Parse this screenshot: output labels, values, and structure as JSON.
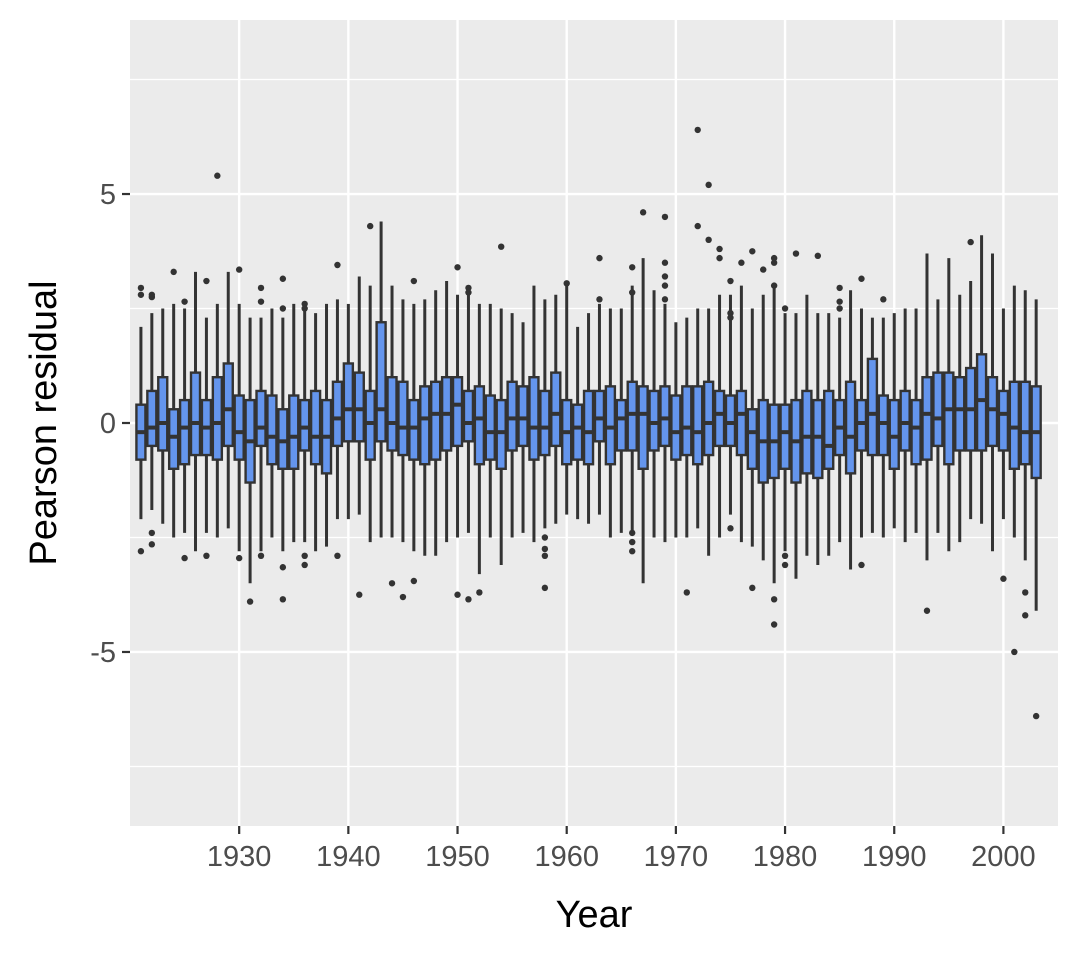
{
  "chart_data": {
    "type": "box",
    "title": "",
    "xlabel": "Year",
    "ylabel": "Pearson residual",
    "xlim": [
      1920,
      2005
    ],
    "ylim": [
      -8.8,
      8.8
    ],
    "xticks": [
      1930,
      1940,
      1950,
      1960,
      1970,
      1980,
      1990,
      2000
    ],
    "yticks": [
      -5,
      0,
      5
    ],
    "grid": true,
    "colors": {
      "panel": "#ebebeb",
      "grid": "#ffffff",
      "box_fill": "#6495ed",
      "box_line": "#333333"
    },
    "boxes": [
      {
        "year": 1921,
        "lw": -2.1,
        "q1": -0.8,
        "med": -0.2,
        "q3": 0.4,
        "uw": 2.1,
        "out": [
          2.8,
          2.95,
          -2.8
        ]
      },
      {
        "year": 1922,
        "lw": -1.9,
        "q1": -0.5,
        "med": -0.1,
        "q3": 0.7,
        "uw": 2.4,
        "out": [
          2.75,
          2.8,
          -2.4,
          -2.65
        ]
      },
      {
        "year": 1923,
        "lw": -2.2,
        "q1": -0.6,
        "med": 0.0,
        "q3": 1.0,
        "uw": 2.5,
        "out": []
      },
      {
        "year": 1924,
        "lw": -2.5,
        "q1": -1.0,
        "med": -0.3,
        "q3": 0.3,
        "uw": 2.6,
        "out": [
          3.3
        ]
      },
      {
        "year": 1925,
        "lw": -2.4,
        "q1": -0.9,
        "med": -0.1,
        "q3": 0.5,
        "uw": 2.5,
        "out": [
          2.65,
          -2.95
        ]
      },
      {
        "year": 1926,
        "lw": -2.8,
        "q1": -0.7,
        "med": 0.0,
        "q3": 1.1,
        "uw": 3.3,
        "out": []
      },
      {
        "year": 1927,
        "lw": -2.4,
        "q1": -0.7,
        "med": -0.1,
        "q3": 0.5,
        "uw": 2.3,
        "out": [
          3.1,
          -2.9
        ]
      },
      {
        "year": 1928,
        "lw": -2.5,
        "q1": -0.8,
        "med": 0.0,
        "q3": 1.0,
        "uw": 2.6,
        "out": [
          5.4
        ]
      },
      {
        "year": 1929,
        "lw": -2.3,
        "q1": -0.5,
        "med": 0.3,
        "q3": 1.3,
        "uw": 3.3,
        "out": []
      },
      {
        "year": 1930,
        "lw": -2.8,
        "q1": -0.8,
        "med": -0.2,
        "q3": 0.6,
        "uw": 2.6,
        "out": [
          3.35,
          -2.95
        ]
      },
      {
        "year": 1931,
        "lw": -3.5,
        "q1": -1.3,
        "med": -0.4,
        "q3": 0.5,
        "uw": 2.3,
        "out": [
          -3.9
        ]
      },
      {
        "year": 1932,
        "lw": -2.8,
        "q1": -0.5,
        "med": -0.1,
        "q3": 0.7,
        "uw": 2.3,
        "out": [
          2.65,
          2.95,
          -2.9
        ]
      },
      {
        "year": 1933,
        "lw": -2.5,
        "q1": -0.9,
        "med": -0.3,
        "q3": 0.6,
        "uw": 2.5,
        "out": []
      },
      {
        "year": 1934,
        "lw": -2.8,
        "q1": -1.0,
        "med": -0.4,
        "q3": 0.3,
        "uw": 2.3,
        "out": [
          3.15,
          2.5,
          -3.15,
          -3.85
        ]
      },
      {
        "year": 1935,
        "lw": -2.6,
        "q1": -1.0,
        "med": -0.3,
        "q3": 0.6,
        "uw": 2.6,
        "out": []
      },
      {
        "year": 1936,
        "lw": -2.6,
        "q1": -0.6,
        "med": -0.1,
        "q3": 0.5,
        "uw": 2.5,
        "out": [
          2.6,
          2.5,
          -2.9,
          -3.1
        ]
      },
      {
        "year": 1937,
        "lw": -2.8,
        "q1": -0.9,
        "med": -0.3,
        "q3": 0.7,
        "uw": 2.4,
        "out": []
      },
      {
        "year": 1938,
        "lw": -2.7,
        "q1": -1.1,
        "med": -0.3,
        "q3": 0.5,
        "uw": 2.6,
        "out": []
      },
      {
        "year": 1939,
        "lw": -2.1,
        "q1": -0.5,
        "med": 0.1,
        "q3": 0.9,
        "uw": 2.7,
        "out": [
          3.45,
          -2.9
        ]
      },
      {
        "year": 1940,
        "lw": -2.1,
        "q1": -0.4,
        "med": 0.3,
        "q3": 1.3,
        "uw": 2.6,
        "out": []
      },
      {
        "year": 1941,
        "lw": -2.0,
        "q1": -0.4,
        "med": 0.3,
        "q3": 1.1,
        "uw": 3.2,
        "out": [
          -3.75
        ]
      },
      {
        "year": 1942,
        "lw": -2.6,
        "q1": -0.8,
        "med": 0.0,
        "q3": 0.7,
        "uw": 3.0,
        "out": [
          4.3
        ]
      },
      {
        "year": 1943,
        "lw": -2.5,
        "q1": -0.4,
        "med": 0.3,
        "q3": 2.2,
        "uw": 4.4,
        "out": []
      },
      {
        "year": 1944,
        "lw": -2.5,
        "q1": -0.6,
        "med": 0.0,
        "q3": 1.0,
        "uw": 3.0,
        "out": [
          -3.5
        ]
      },
      {
        "year": 1945,
        "lw": -2.6,
        "q1": -0.7,
        "med": -0.1,
        "q3": 0.9,
        "uw": 2.7,
        "out": [
          -3.8
        ]
      },
      {
        "year": 1946,
        "lw": -2.8,
        "q1": -0.8,
        "med": -0.1,
        "q3": 0.5,
        "uw": 2.6,
        "out": [
          3.1,
          -3.45
        ]
      },
      {
        "year": 1947,
        "lw": -2.9,
        "q1": -0.9,
        "med": 0.1,
        "q3": 0.8,
        "uw": 2.7,
        "out": []
      },
      {
        "year": 1948,
        "lw": -2.9,
        "q1": -0.8,
        "med": 0.2,
        "q3": 0.9,
        "uw": 2.9,
        "out": []
      },
      {
        "year": 1949,
        "lw": -2.6,
        "q1": -0.6,
        "med": 0.2,
        "q3": 1.0,
        "uw": 3.1,
        "out": []
      },
      {
        "year": 1950,
        "lw": -2.5,
        "q1": -0.5,
        "med": 0.4,
        "q3": 1.0,
        "uw": 2.8,
        "out": [
          3.4,
          -3.75
        ]
      },
      {
        "year": 1951,
        "lw": -2.4,
        "q1": -0.4,
        "med": 0.0,
        "q3": 0.7,
        "uw": 2.8,
        "out": [
          2.85,
          2.95,
          -3.85
        ]
      },
      {
        "year": 1952,
        "lw": -3.3,
        "q1": -0.9,
        "med": 0.1,
        "q3": 0.8,
        "uw": 2.6,
        "out": [
          -3.7
        ]
      },
      {
        "year": 1953,
        "lw": -2.5,
        "q1": -0.8,
        "med": -0.2,
        "q3": 0.6,
        "uw": 2.6,
        "out": []
      },
      {
        "year": 1954,
        "lw": -3.1,
        "q1": -1.0,
        "med": -0.2,
        "q3": 0.5,
        "uw": 2.5,
        "out": [
          3.85
        ]
      },
      {
        "year": 1955,
        "lw": -2.5,
        "q1": -0.6,
        "med": 0.1,
        "q3": 0.9,
        "uw": 2.4,
        "out": []
      },
      {
        "year": 1956,
        "lw": -2.4,
        "q1": -0.5,
        "med": 0.1,
        "q3": 0.8,
        "uw": 2.2,
        "out": []
      },
      {
        "year": 1957,
        "lw": -2.6,
        "q1": -0.8,
        "med": -0.1,
        "q3": 1.0,
        "uw": 3.0,
        "out": []
      },
      {
        "year": 1958,
        "lw": -2.3,
        "q1": -0.7,
        "med": -0.1,
        "q3": 0.7,
        "uw": 2.7,
        "out": [
          -2.5,
          -2.75,
          -2.9,
          -3.6
        ]
      },
      {
        "year": 1959,
        "lw": -2.2,
        "q1": -0.5,
        "med": 0.2,
        "q3": 1.1,
        "uw": 2.8,
        "out": []
      },
      {
        "year": 1960,
        "lw": -2.0,
        "q1": -0.9,
        "med": -0.2,
        "q3": 0.5,
        "uw": 3.0,
        "out": [
          3.05
        ]
      },
      {
        "year": 1961,
        "lw": -2.1,
        "q1": -0.8,
        "med": -0.1,
        "q3": 0.4,
        "uw": 2.1,
        "out": []
      },
      {
        "year": 1962,
        "lw": -2.2,
        "q1": -0.9,
        "med": -0.2,
        "q3": 0.7,
        "uw": 2.4,
        "out": []
      },
      {
        "year": 1963,
        "lw": -2.0,
        "q1": -0.4,
        "med": 0.1,
        "q3": 0.7,
        "uw": 2.6,
        "out": [
          3.6,
          2.7
        ]
      },
      {
        "year": 1964,
        "lw": -2.5,
        "q1": -0.9,
        "med": -0.1,
        "q3": 0.8,
        "uw": 2.5,
        "out": []
      },
      {
        "year": 1965,
        "lw": -2.4,
        "q1": -0.6,
        "med": 0.1,
        "q3": 0.5,
        "uw": 2.5,
        "out": []
      },
      {
        "year": 1966,
        "lw": -2.4,
        "q1": -0.6,
        "med": 0.2,
        "q3": 0.9,
        "uw": 3.0,
        "out": [
          -2.4,
          -2.6,
          -2.8,
          3.4,
          2.85
        ]
      },
      {
        "year": 1967,
        "lw": -3.5,
        "q1": -1.0,
        "med": 0.2,
        "q3": 0.8,
        "uw": 3.6,
        "out": [
          4.6
        ]
      },
      {
        "year": 1968,
        "lw": -2.5,
        "q1": -0.6,
        "med": 0.0,
        "q3": 0.7,
        "uw": 2.9,
        "out": []
      },
      {
        "year": 1969,
        "lw": -2.6,
        "q1": -0.5,
        "med": 0.1,
        "q3": 0.8,
        "uw": 2.6,
        "out": [
          4.5,
          3.5,
          3.2,
          3.0,
          2.7
        ]
      },
      {
        "year": 1970,
        "lw": -2.5,
        "q1": -0.8,
        "med": -0.2,
        "q3": 0.6,
        "uw": 2.2,
        "out": []
      },
      {
        "year": 1971,
        "lw": -2.5,
        "q1": -0.7,
        "med": -0.1,
        "q3": 0.8,
        "uw": 2.3,
        "out": [
          -3.7
        ]
      },
      {
        "year": 1972,
        "lw": -2.3,
        "q1": -0.9,
        "med": -0.2,
        "q3": 0.8,
        "uw": 2.5,
        "out": [
          6.4,
          4.3
        ]
      },
      {
        "year": 1973,
        "lw": -2.9,
        "q1": -0.7,
        "med": 0.0,
        "q3": 0.9,
        "uw": 2.5,
        "out": [
          5.2,
          4.0
        ]
      },
      {
        "year": 1974,
        "lw": -2.5,
        "q1": -0.5,
        "med": 0.2,
        "q3": 0.7,
        "uw": 2.8,
        "out": [
          3.8,
          3.6
        ]
      },
      {
        "year": 1975,
        "lw": -2.0,
        "q1": -0.5,
        "med": 0.0,
        "q3": 0.6,
        "uw": 2.8,
        "out": [
          3.1,
          2.4,
          2.3,
          -2.3
        ]
      },
      {
        "year": 1976,
        "lw": -2.6,
        "q1": -0.7,
        "med": 0.2,
        "q3": 0.7,
        "uw": 3.0,
        "out": [
          3.5
        ]
      },
      {
        "year": 1977,
        "lw": -2.7,
        "q1": -1.0,
        "med": -0.2,
        "q3": 0.3,
        "uw": 2.5,
        "out": [
          3.75,
          -3.6
        ]
      },
      {
        "year": 1978,
        "lw": -3.0,
        "q1": -1.3,
        "med": -0.4,
        "q3": 0.5,
        "uw": 2.8,
        "out": [
          3.35
        ]
      },
      {
        "year": 1979,
        "lw": -3.5,
        "q1": -1.2,
        "med": -0.4,
        "q3": 0.4,
        "uw": 3.0,
        "out": [
          3.6,
          3.5,
          3.0,
          -3.85,
          -4.4
        ]
      },
      {
        "year": 1980,
        "lw": -2.8,
        "q1": -1.0,
        "med": -0.2,
        "q3": 0.4,
        "uw": 2.4,
        "out": [
          2.5,
          -2.9,
          -3.1
        ]
      },
      {
        "year": 1981,
        "lw": -3.4,
        "q1": -1.3,
        "med": -0.4,
        "q3": 0.5,
        "uw": 2.4,
        "out": [
          3.7
        ]
      },
      {
        "year": 1982,
        "lw": -2.9,
        "q1": -1.1,
        "med": -0.3,
        "q3": 0.7,
        "uw": 2.8,
        "out": []
      },
      {
        "year": 1983,
        "lw": -3.1,
        "q1": -1.2,
        "med": -0.3,
        "q3": 0.5,
        "uw": 2.4,
        "out": [
          3.65
        ]
      },
      {
        "year": 1984,
        "lw": -2.9,
        "q1": -1.0,
        "med": -0.5,
        "q3": 0.7,
        "uw": 2.4,
        "out": []
      },
      {
        "year": 1985,
        "lw": -2.6,
        "q1": -0.7,
        "med": -0.1,
        "q3": 0.5,
        "uw": 2.3,
        "out": [
          2.95,
          2.65,
          2.5
        ]
      },
      {
        "year": 1986,
        "lw": -3.2,
        "q1": -1.1,
        "med": -0.3,
        "q3": 0.9,
        "uw": 2.9,
        "out": []
      },
      {
        "year": 1987,
        "lw": -2.5,
        "q1": -0.6,
        "med": 0.0,
        "q3": 0.5,
        "uw": 2.5,
        "out": [
          3.15,
          -3.1
        ]
      },
      {
        "year": 1988,
        "lw": -2.4,
        "q1": -0.7,
        "med": 0.2,
        "q3": 1.4,
        "uw": 2.3,
        "out": []
      },
      {
        "year": 1989,
        "lw": -2.5,
        "q1": -0.7,
        "med": 0.0,
        "q3": 0.6,
        "uw": 2.3,
        "out": [
          2.7
        ]
      },
      {
        "year": 1990,
        "lw": -2.3,
        "q1": -1.0,
        "med": -0.3,
        "q3": 0.5,
        "uw": 2.4,
        "out": []
      },
      {
        "year": 1991,
        "lw": -2.6,
        "q1": -0.6,
        "med": 0.0,
        "q3": 0.7,
        "uw": 2.5,
        "out": []
      },
      {
        "year": 1992,
        "lw": -2.4,
        "q1": -0.9,
        "med": -0.1,
        "q3": 0.5,
        "uw": 2.5,
        "out": []
      },
      {
        "year": 1993,
        "lw": -3.0,
        "q1": -0.8,
        "med": 0.2,
        "q3": 1.0,
        "uw": 3.7,
        "out": [
          -4.1
        ]
      },
      {
        "year": 1994,
        "lw": -2.4,
        "q1": -0.5,
        "med": 0.1,
        "q3": 1.1,
        "uw": 2.7,
        "out": []
      },
      {
        "year": 1995,
        "lw": -2.8,
        "q1": -0.9,
        "med": 0.3,
        "q3": 1.1,
        "uw": 3.6,
        "out": []
      },
      {
        "year": 1996,
        "lw": -2.6,
        "q1": -0.6,
        "med": 0.3,
        "q3": 1.0,
        "uw": 2.8,
        "out": []
      },
      {
        "year": 1997,
        "lw": -2.1,
        "q1": -0.6,
        "med": 0.3,
        "q3": 1.2,
        "uw": 3.1,
        "out": [
          3.95
        ]
      },
      {
        "year": 1998,
        "lw": -2.2,
        "q1": -0.6,
        "med": 0.5,
        "q3": 1.5,
        "uw": 4.1,
        "out": []
      },
      {
        "year": 1999,
        "lw": -2.8,
        "q1": -0.5,
        "med": 0.3,
        "q3": 1.0,
        "uw": 3.7,
        "out": []
      },
      {
        "year": 2000,
        "lw": -2.1,
        "q1": -0.6,
        "med": 0.2,
        "q3": 0.7,
        "uw": 2.5,
        "out": [
          -3.4
        ]
      },
      {
        "year": 2001,
        "lw": -2.5,
        "q1": -1.0,
        "med": -0.1,
        "q3": 0.9,
        "uw": 3.0,
        "out": [
          -5.0
        ]
      },
      {
        "year": 2002,
        "lw": -3.0,
        "q1": -0.9,
        "med": -0.2,
        "q3": 0.9,
        "uw": 2.9,
        "out": [
          -3.7,
          -4.2
        ]
      },
      {
        "year": 2003,
        "lw": -4.1,
        "q1": -1.2,
        "med": -0.2,
        "q3": 0.8,
        "uw": 2.7,
        "out": [
          -6.4
        ]
      }
    ]
  }
}
